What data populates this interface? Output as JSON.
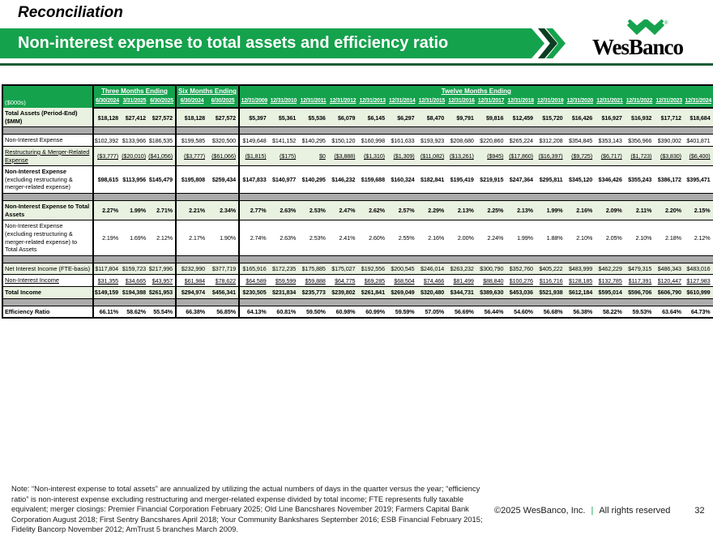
{
  "slide": {
    "kicker": "Reconciliation",
    "title": "Non-interest expense to total assets and efficiency ratio",
    "logo": {
      "name": "WesBanco"
    },
    "note": "Note: “Non-interest expense to total assets” are annualized by utilizing the actual numbers of days in the quarter versus the year; “efficiency ratio” is non-interest expense excluding restructuring and merger-related expense divided by total income; FTE represents fully taxable equivalent; merger closings: Premier Financial Corporation February 2025; Old Line Bancshares November 2019; Farmers Capital Bank Corporation August 2018; First Sentry Bancshares April 2018; Your Community Bankshares September 2016; ESB Financial February 2015; Fidelity Bancorp November 2012; AmTrust 5 branches March 2009.",
    "footer": {
      "copyright": "©2025 WesBanco, Inc.",
      "divider": "|",
      "rights": "All rights reserved",
      "page": "32"
    }
  },
  "colors": {
    "brand_green": "#15A24D",
    "dark_green": "#0B3E22",
    "light_green_row": "#E9F1E0",
    "separator_gray": "#ABABAB"
  },
  "table": {
    "units_label": "($000s)",
    "column_groups": [
      {
        "label": "Three Months Ending",
        "columns": [
          "6/30/2024",
          "3/31/2025",
          "6/30/2025"
        ]
      },
      {
        "label": "Six Months Ending",
        "columns": [
          "6/30/2024",
          "6/30/2025"
        ]
      },
      {
        "label": "Twelve Months Ending",
        "columns": [
          "12/31/2009",
          "12/31/2010",
          "12/31/2011",
          "12/31/2012",
          "12/31/2013",
          "12/31/2014",
          "12/31/2015",
          "12/31/2016",
          "12/31/2017",
          "12/31/2018",
          "12/31/2019",
          "12/31/2020",
          "12/31/2021",
          "12/31/2022",
          "12/31/2023",
          "12/31/2024"
        ]
      }
    ],
    "rows": [
      {
        "label": "Total Assets (Period-End) ($MM)",
        "bg": "green",
        "bold": true,
        "values": [
          "$18,128",
          "$27,412",
          "$27,572",
          "$18,128",
          "$27,572",
          "$5,397",
          "$5,361",
          "$5,536",
          "$6,079",
          "$6,145",
          "$6,297",
          "$8,470",
          "$9,791",
          "$9,816",
          "$12,459",
          "$15,720",
          "$16,426",
          "$16,927",
          "$16,932",
          "$17,712",
          "$18,684"
        ]
      },
      {
        "separator": true
      },
      {
        "label": "Non-Interest Expense",
        "bg": "white",
        "values": [
          "$102,392",
          "$133,966",
          "$186,535",
          "$199,585",
          "$320,500",
          "$149,648",
          "$141,152",
          "$140,295",
          "$150,120",
          "$160,998",
          "$161,633",
          "$193,923",
          "$208,680",
          "$220,860",
          "$265,224",
          "$312,208",
          "$354,845",
          "$353,143",
          "$356,966",
          "$390,002",
          "$401,871"
        ]
      },
      {
        "label": "Restructuring & Merger-Related Expense",
        "bg": "green",
        "underline": true,
        "values": [
          "($3,777)",
          "($20,010)",
          "($41,056)",
          "($3,777)",
          "($61,066)",
          "($1,815)",
          "($175)",
          "$0",
          "($3,888)",
          "($1,310)",
          "($1,309)",
          "($11,082)",
          "($13,261)",
          "($945)",
          "($17,860)",
          "($16,397)",
          "($9,725)",
          "($6,717)",
          "($1,723)",
          "($3,830)",
          "($6,400)"
        ]
      },
      {
        "label_parts": [
          {
            "text": "Non-Interest Expense ",
            "bold": true
          },
          {
            "text": "(excluding restructuring & merger-related expense)",
            "bold": false
          }
        ],
        "bg": "white",
        "bold_values": true,
        "values": [
          "$98,615",
          "$113,956",
          "$145,479",
          "$195,808",
          "$259,434",
          "$147,833",
          "$140,977",
          "$140,295",
          "$146,232",
          "$159,688",
          "$160,324",
          "$182,841",
          "$195,419",
          "$219,915",
          "$247,364",
          "$295,811",
          "$345,120",
          "$346,426",
          "$355,243",
          "$386,172",
          "$395,471"
        ]
      },
      {
        "separator": true
      },
      {
        "label": "Non-Interest Expense to Total Assets",
        "bg": "green",
        "bold": true,
        "values": [
          "2.27%",
          "1.99%",
          "2.71%",
          "2.21%",
          "2.34%",
          "2.77%",
          "2.63%",
          "2.53%",
          "2.47%",
          "2.62%",
          "2.57%",
          "2.29%",
          "2.13%",
          "2.25%",
          "2.13%",
          "1.99%",
          "2.16%",
          "2.09%",
          "2.11%",
          "2.20%",
          "2.15%"
        ]
      },
      {
        "label": "Non-Interest Expense (excluding restructuring & merger-related expense) to Total Assets",
        "bg": "white",
        "values": [
          "2.19%",
          "1.69%",
          "2.12%",
          "2.17%",
          "1.90%",
          "2.74%",
          "2.63%",
          "2.53%",
          "2.41%",
          "2.60%",
          "2.55%",
          "2.16%",
          "2.00%",
          "2.24%",
          "1.99%",
          "1.88%",
          "2.10%",
          "2.05%",
          "2.10%",
          "2.18%",
          "2.12%"
        ]
      },
      {
        "separator": true
      },
      {
        "label": "Net Interest Income (FTE-basis)",
        "bg": "green",
        "values": [
          "$117,804",
          "$159,723",
          "$217,996",
          "$232,990",
          "$377,719",
          "$165,916",
          "$172,235",
          "$175,885",
          "$175,027",
          "$192,556",
          "$200,545",
          "$246,014",
          "$263,232",
          "$300,790",
          "$352,760",
          "$405,222",
          "$483,999",
          "$462,229",
          "$479,315",
          "$486,343",
          "$483,016"
        ]
      },
      {
        "label": "Non-Interest Income",
        "bg": "white",
        "underline": true,
        "values": [
          "$31,355",
          "$34,665",
          "$43,957",
          "$61,984",
          "$78,622",
          "$64,589",
          "$59,599",
          "$59,888",
          "$64,775",
          "$69,285",
          "$68,504",
          "$74,466",
          "$81,499",
          "$88,840",
          "$100,276",
          "$116,716",
          "$128,185",
          "$132,785",
          "$117,391",
          "$120,447",
          "$127,983"
        ]
      },
      {
        "label": "Total Income",
        "bg": "green",
        "bold": true,
        "values": [
          "$149,159",
          "$194,388",
          "$261,953",
          "$294,974",
          "$456,341",
          "$230,505",
          "$231,834",
          "$235,773",
          "$239,802",
          "$261,841",
          "$269,049",
          "$320,480",
          "$344,731",
          "$389,630",
          "$453,036",
          "$521,938",
          "$612,184",
          "$595,014",
          "$596,706",
          "$606,790",
          "$610,999"
        ]
      },
      {
        "separator": true
      },
      {
        "label": "Efficiency Ratio",
        "bg": "white",
        "bold": true,
        "values": [
          "66.11%",
          "58.62%",
          "55.54%",
          "66.38%",
          "56.85%",
          "64.13%",
          "60.81%",
          "59.50%",
          "60.98%",
          "60.99%",
          "59.59%",
          "57.05%",
          "56.69%",
          "56.44%",
          "54.60%",
          "56.68%",
          "56.38%",
          "58.22%",
          "59.53%",
          "63.64%",
          "64.73%"
        ]
      }
    ]
  }
}
